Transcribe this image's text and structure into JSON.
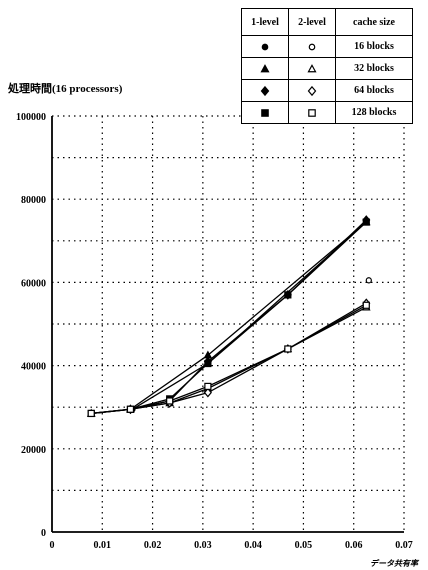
{
  "chart_data": {
    "type": "line",
    "ylabel": "処理時間(16 processors)",
    "xlabel": "データ共有率",
    "xlim": [
      0,
      0.07
    ],
    "ylim": [
      0,
      100000
    ],
    "xticks": [
      "0",
      "0.01",
      "0.02",
      "0.03",
      "0.04",
      "0.05",
      "0.06",
      "0.07"
    ],
    "yticks": [
      "0",
      "20000",
      "40000",
      "60000",
      "80000",
      "100000"
    ],
    "grid": true,
    "legend_position": "top-right",
    "legend_headers": [
      "1-level",
      "2-level",
      "cache size"
    ],
    "series": [
      {
        "level": "1-level",
        "cache": "16 blocks",
        "marker": "circle",
        "filled": true,
        "x": [
          0.016,
          0.031,
          0.0625
        ],
        "y": [
          29500,
          40500,
          74500
        ]
      },
      {
        "level": "2-level",
        "cache": "16 blocks",
        "marker": "circle",
        "filled": false,
        "x": [
          0.063
        ],
        "y": [
          60500
        ]
      },
      {
        "level": "1-level",
        "cache": "32 blocks",
        "marker": "triangle",
        "filled": true,
        "x": [
          0.0078,
          0.0156,
          0.031,
          0.0625
        ],
        "y": [
          28500,
          29500,
          42500,
          74500
        ]
      },
      {
        "level": "2-level",
        "cache": "32 blocks",
        "marker": "triangle",
        "filled": false,
        "x": [
          0.0078,
          0.0156,
          0.0234,
          0.031,
          0.0469,
          0.0625
        ],
        "y": [
          28500,
          29500,
          31000,
          34500,
          44000,
          54000
        ]
      },
      {
        "level": "1-level",
        "cache": "64 blocks",
        "marker": "diamond",
        "filled": true,
        "x": [
          0.0156,
          0.0234,
          0.031,
          0.0469,
          0.0625
        ],
        "y": [
          29500,
          31500,
          41000,
          57000,
          75000
        ]
      },
      {
        "level": "2-level",
        "cache": "64 blocks",
        "marker": "diamond",
        "filled": false,
        "x": [
          0.0156,
          0.0234,
          0.031,
          0.0469,
          0.0625
        ],
        "y": [
          29500,
          31000,
          33500,
          44000,
          55000
        ]
      },
      {
        "level": "1-level",
        "cache": "128 blocks",
        "marker": "square",
        "filled": true,
        "x": [
          0.0078,
          0.0156,
          0.0234,
          0.031,
          0.0469,
          0.0625
        ],
        "y": [
          28500,
          29500,
          32000,
          40500,
          57000,
          74500
        ]
      },
      {
        "level": "2-level",
        "cache": "128 blocks",
        "marker": "square",
        "filled": false,
        "x": [
          0.0078,
          0.0156,
          0.0234,
          0.031,
          0.0469,
          0.0625
        ],
        "y": [
          28500,
          29500,
          31500,
          35000,
          44000,
          54500
        ]
      }
    ],
    "legend_rows": [
      {
        "marker": "circle",
        "size": "16 blocks"
      },
      {
        "marker": "triangle",
        "size": "32 blocks"
      },
      {
        "marker": "diamond",
        "size": "64 blocks"
      },
      {
        "marker": "square",
        "size": "128 blocks"
      }
    ]
  }
}
